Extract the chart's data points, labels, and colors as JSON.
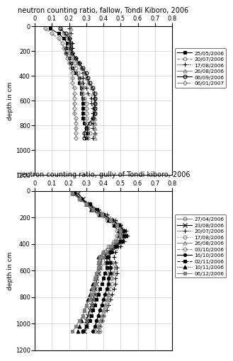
{
  "title_top": "neutron counting ratio, fallow, Tondi Kiboro, 2006",
  "title_bottom": "neutron counting ratio, gully of Tondi kiboro, 2006",
  "ylabel": "depth in cm",
  "xlim": [
    0,
    0.8
  ],
  "ylim": [
    1200,
    0
  ],
  "yticks": [
    0,
    200,
    400,
    600,
    800,
    1000,
    1200
  ],
  "xticks": [
    0,
    0.1,
    0.2,
    0.3,
    0.4,
    0.5,
    0.6,
    0.7,
    0.8
  ],
  "fallow_series": [
    {
      "label": "25/05/2006",
      "style": "-",
      "marker": "s",
      "fillstyle": "full",
      "color": "black",
      "markersize": 3.5,
      "depths": [
        20,
        60,
        100,
        140,
        180,
        220,
        260,
        300,
        340,
        380,
        420,
        460,
        500,
        540,
        580,
        620,
        660,
        700,
        740,
        780,
        820,
        860,
        900
      ],
      "values": [
        0.09,
        0.14,
        0.17,
        0.19,
        0.18,
        0.18,
        0.2,
        0.21,
        0.22,
        0.24,
        0.26,
        0.26,
        0.27,
        0.27,
        0.28,
        0.28,
        0.28,
        0.28,
        0.28,
        0.29,
        0.3,
        0.31,
        0.3
      ]
    },
    {
      "label": "20/07/2006",
      "style": "--",
      "marker": "o",
      "fillstyle": "none",
      "color": "gray",
      "markersize": 3.5,
      "depths": [
        20,
        60,
        100,
        140,
        180,
        220,
        260,
        300,
        340,
        380,
        420,
        460,
        500,
        540,
        580,
        620,
        660,
        700,
        740,
        780,
        820,
        860,
        900
      ],
      "values": [
        0.15,
        0.17,
        0.19,
        0.21,
        0.2,
        0.2,
        0.22,
        0.23,
        0.24,
        0.25,
        0.26,
        0.27,
        0.28,
        0.28,
        0.29,
        0.3,
        0.3,
        0.3,
        0.3,
        0.3,
        0.31,
        0.32,
        0.31
      ]
    },
    {
      "label": "17/08/2006",
      "style": ":",
      "marker": "+",
      "fillstyle": "full",
      "color": "black",
      "markersize": 5,
      "depths": [
        20,
        60,
        100,
        140,
        180,
        220,
        260,
        300,
        340,
        380,
        420,
        460,
        500,
        540,
        580,
        620,
        660,
        700,
        740,
        780,
        820,
        860,
        900
      ],
      "values": [
        0.2,
        0.21,
        0.2,
        0.22,
        0.22,
        0.22,
        0.24,
        0.26,
        0.27,
        0.28,
        0.28,
        0.28,
        0.3,
        0.31,
        0.33,
        0.33,
        0.34,
        0.34,
        0.34,
        0.34,
        0.34,
        0.35,
        0.34
      ]
    },
    {
      "label": "26/08/2006",
      "style": "-",
      "marker": "^",
      "fillstyle": "none",
      "color": "gray",
      "markersize": 3.5,
      "depths": [
        20,
        60,
        100,
        140,
        180,
        220,
        260,
        300,
        340,
        380,
        420,
        460,
        500,
        540,
        580,
        620,
        660,
        700,
        740,
        780,
        820,
        860,
        900
      ],
      "values": [
        0.21,
        0.2,
        0.2,
        0.2,
        0.2,
        0.21,
        0.23,
        0.25,
        0.27,
        0.29,
        0.3,
        0.31,
        0.33,
        0.34,
        0.35,
        0.35,
        0.35,
        0.35,
        0.35,
        0.35,
        0.35,
        0.35,
        0.35
      ]
    },
    {
      "label": "06/09/2006",
      "style": "-",
      "marker": "o",
      "fillstyle": "none",
      "color": "black",
      "markersize": 3.5,
      "depths": [
        20,
        60,
        100,
        140,
        180,
        220,
        260,
        300,
        340,
        380,
        420,
        460,
        500,
        540,
        580,
        620,
        660,
        700,
        740,
        780,
        820,
        860,
        900
      ],
      "values": [
        0.15,
        0.18,
        0.2,
        0.21,
        0.21,
        0.22,
        0.24,
        0.26,
        0.28,
        0.3,
        0.31,
        0.32,
        0.34,
        0.35,
        0.35,
        0.35,
        0.35,
        0.35,
        0.34,
        0.32,
        0.3,
        0.29,
        0.29
      ]
    },
    {
      "label": "06/01/2007",
      "style": "-.",
      "marker": "D",
      "fillstyle": "none",
      "color": "gray",
      "markersize": 3,
      "depths": [
        20,
        60,
        100,
        140,
        180,
        220,
        260,
        300,
        340,
        380,
        420,
        460,
        500,
        540,
        580,
        620,
        660,
        700,
        740,
        780,
        820,
        860,
        900
      ],
      "values": [
        0.06,
        0.1,
        0.14,
        0.16,
        0.17,
        0.18,
        0.19,
        0.2,
        0.21,
        0.22,
        0.22,
        0.22,
        0.23,
        0.23,
        0.23,
        0.23,
        0.23,
        0.23,
        0.24,
        0.24,
        0.24,
        0.24,
        0.24
      ]
    }
  ],
  "gully_series": [
    {
      "label": "27/04/2006",
      "style": "-",
      "marker": "o",
      "fillstyle": "none",
      "color": "gray",
      "markersize": 3.5,
      "depths": [
        20,
        60,
        100,
        140,
        180,
        220,
        260,
        300,
        340,
        380,
        420,
        460,
        500,
        540,
        580,
        620,
        660,
        700,
        740,
        780,
        820,
        860,
        900,
        940,
        980,
        1020,
        1060
      ],
      "values": [
        0.22,
        0.27,
        0.31,
        0.35,
        0.39,
        0.45,
        0.5,
        0.52,
        0.53,
        0.5,
        0.47,
        0.44,
        0.43,
        0.45,
        0.47,
        0.46,
        0.44,
        0.43,
        0.42,
        0.41,
        0.4,
        0.39,
        0.38,
        0.37,
        0.36,
        0.36,
        0.35
      ]
    },
    {
      "label": "23/08/2006",
      "style": "-",
      "marker": "x",
      "fillstyle": "full",
      "color": "black",
      "markersize": 4,
      "depths": [
        20,
        60,
        100,
        140,
        180,
        220,
        260,
        300,
        340,
        380,
        420,
        460,
        500,
        540,
        580,
        620,
        660,
        700,
        740,
        780,
        820,
        860,
        900,
        940,
        980,
        1020,
        1060
      ],
      "values": [
        0.25,
        0.28,
        0.3,
        0.33,
        0.38,
        0.44,
        0.48,
        0.5,
        0.51,
        0.49,
        0.46,
        0.43,
        0.4,
        0.38,
        0.38,
        0.37,
        0.36,
        0.36,
        0.35,
        0.35,
        0.34,
        0.33,
        0.32,
        0.31,
        0.3,
        0.3,
        0.29
      ]
    },
    {
      "label": "20/07/2006",
      "style": ":",
      "marker": "+",
      "fillstyle": "full",
      "color": "black",
      "markersize": 5,
      "depths": [
        20,
        60,
        100,
        140,
        180,
        220,
        260,
        300,
        340,
        380,
        420,
        460,
        500,
        540,
        580,
        620,
        660,
        700,
        740,
        780,
        820,
        860,
        900,
        940,
        980,
        1020,
        1060
      ],
      "values": [
        0.24,
        0.27,
        0.32,
        0.37,
        0.42,
        0.47,
        0.5,
        0.53,
        0.54,
        0.52,
        0.5,
        0.47,
        0.46,
        0.47,
        0.48,
        0.48,
        0.47,
        0.47,
        0.46,
        0.45,
        0.44,
        0.43,
        0.42,
        0.4,
        0.39,
        0.38,
        0.37
      ]
    },
    {
      "label": "17/08/2006",
      "style": ":",
      "marker": "o",
      "fillstyle": "none",
      "color": "gray",
      "markersize": 3.5,
      "depths": [
        20,
        60,
        100,
        140,
        180,
        220,
        260,
        300,
        340,
        380,
        420,
        460,
        500,
        540,
        580,
        620,
        660,
        700,
        740,
        780,
        820,
        860,
        900,
        940,
        980,
        1020,
        1060
      ],
      "values": [
        0.24,
        0.27,
        0.31,
        0.35,
        0.4,
        0.45,
        0.48,
        0.5,
        0.51,
        0.49,
        0.46,
        0.43,
        0.42,
        0.43,
        0.44,
        0.45,
        0.45,
        0.45,
        0.44,
        0.43,
        0.43,
        0.42,
        0.41,
        0.4,
        0.39,
        0.38,
        0.38
      ]
    },
    {
      "label": "26/08/2006",
      "style": "-",
      "marker": "^",
      "fillstyle": "none",
      "color": "gray",
      "markersize": 3.5,
      "depths": [
        20,
        60,
        100,
        140,
        180,
        220,
        260,
        300,
        340,
        380,
        420,
        460,
        500,
        540,
        580,
        620,
        660,
        700,
        740,
        780,
        820,
        860,
        900,
        940,
        980,
        1020,
        1060
      ],
      "values": [
        0.23,
        0.26,
        0.3,
        0.33,
        0.38,
        0.44,
        0.48,
        0.5,
        0.5,
        0.49,
        0.45,
        0.42,
        0.4,
        0.41,
        0.42,
        0.43,
        0.43,
        0.43,
        0.43,
        0.43,
        0.42,
        0.41,
        0.4,
        0.39,
        0.38,
        0.37,
        0.37
      ]
    },
    {
      "label": "03/10/2006",
      "style": "--",
      "marker": "o",
      "fillstyle": "none",
      "color": "gray",
      "markersize": 3.5,
      "depths": [
        20,
        60,
        100,
        140,
        180,
        220,
        260,
        300,
        340,
        380,
        420,
        460,
        500,
        540,
        580,
        620,
        660,
        700,
        740,
        780,
        820,
        860,
        900,
        940,
        980,
        1020,
        1060
      ],
      "values": [
        0.22,
        0.26,
        0.3,
        0.33,
        0.37,
        0.42,
        0.46,
        0.48,
        0.48,
        0.46,
        0.43,
        0.4,
        0.38,
        0.38,
        0.38,
        0.37,
        0.36,
        0.35,
        0.35,
        0.35,
        0.34,
        0.34,
        0.33,
        0.32,
        0.31,
        0.3,
        0.28
      ]
    },
    {
      "label": "16/10/2006",
      "style": "-",
      "marker": ".",
      "fillstyle": "full",
      "color": "black",
      "markersize": 6,
      "depths": [
        20,
        60,
        100,
        140,
        180,
        220,
        260,
        300,
        340,
        380,
        420,
        460,
        500,
        540,
        580,
        620,
        660,
        700,
        740,
        780,
        820,
        860,
        900,
        940,
        980,
        1020,
        1060
      ],
      "values": [
        0.23,
        0.27,
        0.31,
        0.35,
        0.4,
        0.45,
        0.49,
        0.52,
        0.53,
        0.51,
        0.48,
        0.45,
        0.43,
        0.44,
        0.44,
        0.44,
        0.43,
        0.43,
        0.42,
        0.41,
        0.4,
        0.39,
        0.38,
        0.37,
        0.36,
        0.35,
        0.34
      ]
    },
    {
      "label": "02/11/2006",
      "style": "--",
      "marker": "s",
      "fillstyle": "full",
      "color": "black",
      "markersize": 3.5,
      "depths": [
        20,
        60,
        100,
        140,
        180,
        220,
        260,
        300,
        340,
        380,
        420,
        460,
        500,
        540,
        580,
        620,
        660,
        700,
        740,
        780,
        820,
        860,
        900,
        940,
        980,
        1020,
        1060
      ],
      "values": [
        0.23,
        0.27,
        0.32,
        0.36,
        0.4,
        0.45,
        0.49,
        0.51,
        0.52,
        0.5,
        0.47,
        0.44,
        0.42,
        0.42,
        0.42,
        0.41,
        0.4,
        0.39,
        0.38,
        0.37,
        0.36,
        0.35,
        0.34,
        0.33,
        0.32,
        0.3,
        0.28
      ]
    },
    {
      "label": "10/11/2006",
      "style": ":",
      "marker": "^",
      "fillstyle": "full",
      "color": "black",
      "markersize": 3.5,
      "depths": [
        20,
        60,
        100,
        140,
        180,
        220,
        260,
        300,
        340,
        380,
        420,
        460,
        500,
        540,
        580,
        620,
        660,
        700,
        740,
        780,
        820,
        860,
        900,
        940,
        980,
        1020,
        1060
      ],
      "values": [
        0.22,
        0.27,
        0.3,
        0.33,
        0.38,
        0.43,
        0.46,
        0.49,
        0.49,
        0.47,
        0.44,
        0.4,
        0.37,
        0.37,
        0.37,
        0.36,
        0.35,
        0.34,
        0.33,
        0.32,
        0.31,
        0.3,
        0.29,
        0.28,
        0.27,
        0.26,
        0.25
      ]
    },
    {
      "label": "06/12/2006",
      "style": "-",
      "marker": "s",
      "fillstyle": "full",
      "color": "gray",
      "markersize": 3.5,
      "depths": [
        20,
        60,
        100,
        140,
        180,
        220,
        260,
        300,
        340,
        380,
        420,
        460,
        500,
        540,
        580,
        620,
        660,
        700,
        740,
        780,
        820,
        860,
        900,
        940,
        980,
        1020,
        1060
      ],
      "values": [
        0.22,
        0.26,
        0.3,
        0.34,
        0.39,
        0.44,
        0.48,
        0.5,
        0.5,
        0.47,
        0.44,
        0.4,
        0.38,
        0.37,
        0.37,
        0.36,
        0.35,
        0.35,
        0.34,
        0.33,
        0.32,
        0.3,
        0.29,
        0.28,
        0.26,
        0.24,
        0.22
      ]
    }
  ]
}
